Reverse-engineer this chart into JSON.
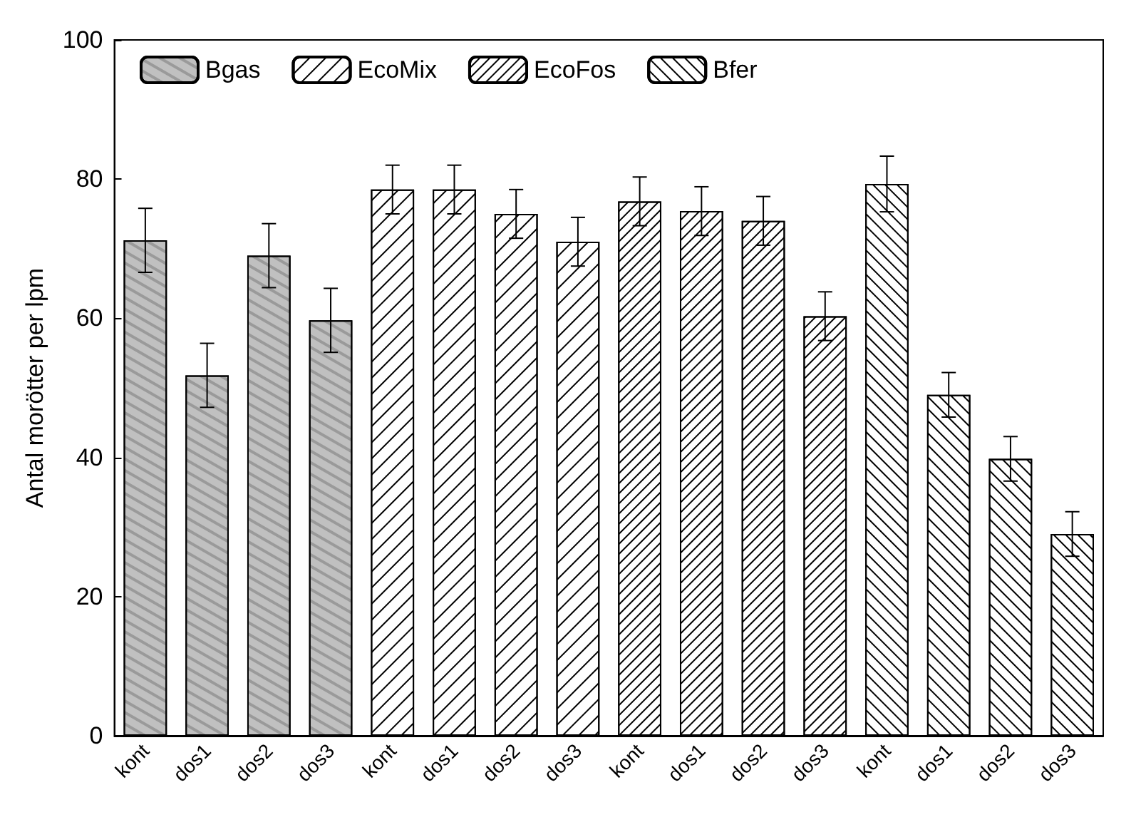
{
  "chart_data": {
    "type": "bar",
    "ylabel": "Antal morötter per lpm",
    "categories": [
      "kont",
      "dos1",
      "dos2",
      "dos3",
      "kont",
      "dos1",
      "dos2",
      "dos3",
      "kont",
      "dos1",
      "dos2",
      "dos3",
      "kont",
      "dos1",
      "dos2",
      "dos3"
    ],
    "series": [
      {
        "name": "Bgas",
        "color": "#c0c0c0",
        "values": [
          71.2,
          51.8,
          69,
          59.7,
          null,
          null,
          null,
          null,
          null,
          null,
          null,
          null,
          null,
          null,
          null,
          null
        ],
        "errors": [
          4.6,
          4.6,
          4.6,
          4.6,
          null,
          null,
          null,
          null,
          null,
          null,
          null,
          null,
          null,
          null,
          null,
          null
        ]
      },
      {
        "name": "EcoMix",
        "color": "#ffffff",
        "values": [
          null,
          null,
          null,
          null,
          78.5,
          78.5,
          75,
          71,
          null,
          null,
          null,
          null,
          null,
          null,
          null,
          null
        ],
        "errors": [
          null,
          null,
          null,
          null,
          3.5,
          3.5,
          3.5,
          3.5,
          null,
          null,
          null,
          null,
          null,
          null,
          null,
          null
        ]
      },
      {
        "name": "EcoFos",
        "color": "#ffffff",
        "values": [
          null,
          null,
          null,
          null,
          null,
          null,
          null,
          null,
          76.8,
          75.4,
          74,
          60.3,
          null,
          null,
          null,
          null
        ],
        "errors": [
          null,
          null,
          null,
          null,
          null,
          null,
          null,
          null,
          3.5,
          3.5,
          3.5,
          3.5,
          null,
          null,
          null,
          null
        ]
      },
      {
        "name": "Bfer",
        "color": "#ffffff",
        "values": [
          null,
          null,
          null,
          null,
          null,
          null,
          null,
          null,
          null,
          null,
          null,
          null,
          79.3,
          49,
          39.8,
          29
        ],
        "errors": [
          null,
          null,
          null,
          null,
          null,
          null,
          null,
          null,
          null,
          null,
          null,
          null,
          4,
          3.2,
          3.2,
          3.2
        ]
      }
    ],
    "ylim": [
      0,
      100
    ],
    "yticks": [
      0,
      20,
      40,
      60,
      80,
      100
    ],
    "grid": false,
    "legend": "top"
  }
}
